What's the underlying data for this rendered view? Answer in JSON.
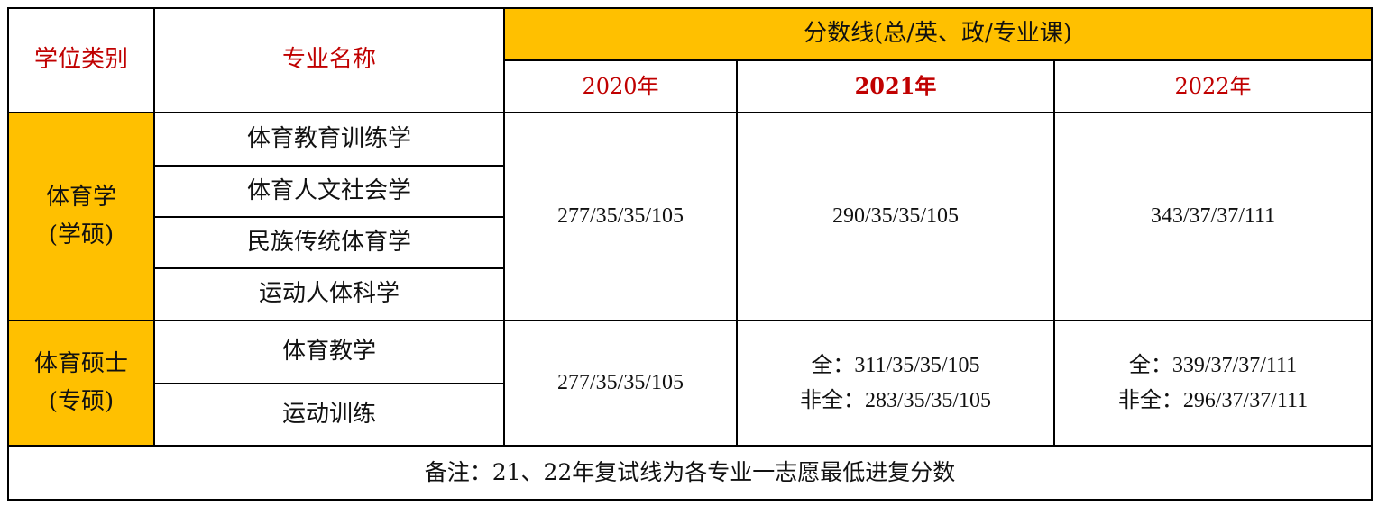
{
  "header": {
    "degree_type": "学位类别",
    "major_name": "专业名称",
    "score_line": "分数线(总/英、政/专业课)",
    "years": [
      "2020年",
      "2021年",
      "2022年"
    ]
  },
  "groups": [
    {
      "degree": "体育学",
      "degree_sub": "(学硕)",
      "majors": [
        "体育教育训练学",
        "体育人文社会学",
        "民族传统体育学",
        "运动人体科学"
      ],
      "scores": [
        "277/35/35/105",
        "290/35/35/105",
        "343/37/37/111"
      ]
    },
    {
      "degree": "体育硕士",
      "degree_sub": "(专硕)",
      "majors": [
        "体育教学",
        "运动训练"
      ],
      "score_2020": "277/35/35/105",
      "score_2021": [
        "全：311/35/35/105",
        "非全：283/35/35/105"
      ],
      "score_2022": [
        "全：339/37/37/111",
        "非全：296/37/37/111"
      ]
    }
  ],
  "note": "备注：21、22年复试线为各专业一志愿最低进复分数",
  "colors": {
    "header_gold": "#ffc000",
    "header_red": "#c00000"
  }
}
